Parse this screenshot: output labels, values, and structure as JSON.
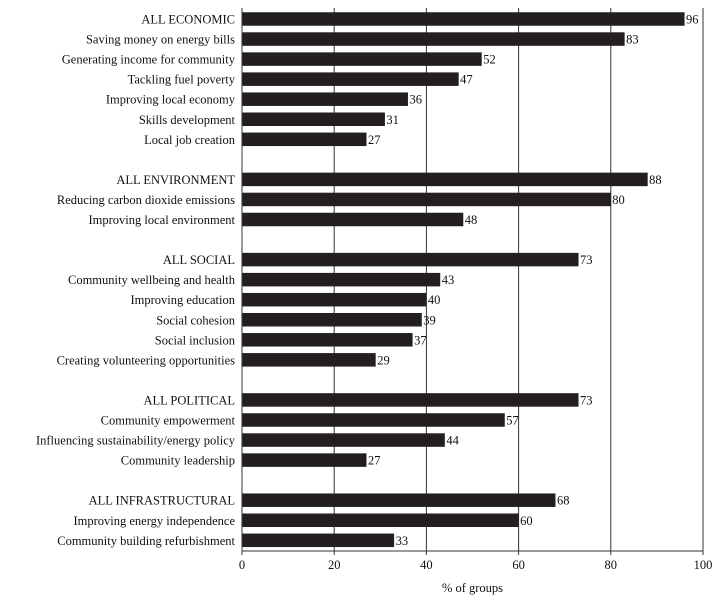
{
  "chart_data": {
    "type": "bar",
    "orientation": "horizontal",
    "categories": [
      "ALL ECONOMIC",
      "Saving money on energy bills",
      "Generating income for community",
      "Tackling fuel poverty",
      "Improving local economy",
      "Skills development",
      "Local job creation",
      "ALL ENVIRONMENT",
      "Reducing carbon dioxide emissions",
      "Improving local environment",
      "ALL SOCIAL",
      "Community wellbeing and health",
      "Improving education",
      "Social cohesion",
      "Social inclusion",
      "Creating volunteering opportunities",
      "ALL POLITICAL",
      "Community empowerment",
      "Influencing sustainability/energy policy",
      "Community leadership",
      "ALL INFRASTRUCTURAL",
      "Improving energy independence",
      "Community building refurbishment"
    ],
    "values": [
      96,
      83,
      52,
      47,
      36,
      31,
      27,
      88,
      80,
      48,
      73,
      43,
      40,
      39,
      37,
      29,
      73,
      57,
      44,
      27,
      68,
      60,
      33
    ],
    "groups": [
      {
        "start": 0,
        "count": 7
      },
      {
        "start": 7,
        "count": 3
      },
      {
        "start": 10,
        "count": 6
      },
      {
        "start": 16,
        "count": 4
      },
      {
        "start": 20,
        "count": 3
      }
    ],
    "xlabel": "% of groups",
    "ylabel": "",
    "xlim": [
      0,
      100
    ],
    "xticks": [
      0,
      20,
      40,
      60,
      80,
      100
    ],
    "grid": "vertical",
    "legend": "none",
    "bar_color": "#231f20"
  }
}
